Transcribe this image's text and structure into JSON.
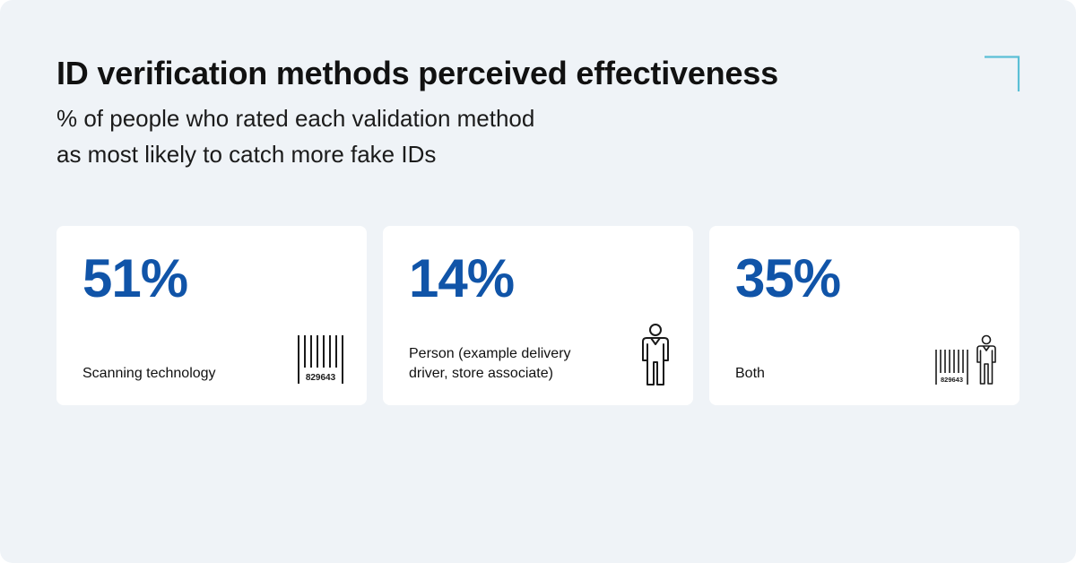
{
  "title": "ID verification methods perceived effectiveness",
  "subtitle": {
    "line1": "% of people who rated each validation method",
    "line2": "as most likely to catch more fake IDs"
  },
  "colors": {
    "background": "#eff3f7",
    "card": "#ffffff",
    "value": "#1054a8",
    "accent": "#5bbfd6"
  },
  "chart_data": {
    "type": "table",
    "title": "ID verification methods perceived effectiveness",
    "subtitle": "% of people who rated each validation method as most likely to catch more fake IDs",
    "categories": [
      "Scanning technology",
      "Person (example delivery driver, store associate)",
      "Both"
    ],
    "values": [
      51,
      14,
      35
    ],
    "value_labels": [
      "51%",
      "14%",
      "35%"
    ],
    "barcode_text": "829643",
    "icons": [
      "barcode-icon",
      "person-icon",
      "barcode-and-person-icon"
    ]
  }
}
